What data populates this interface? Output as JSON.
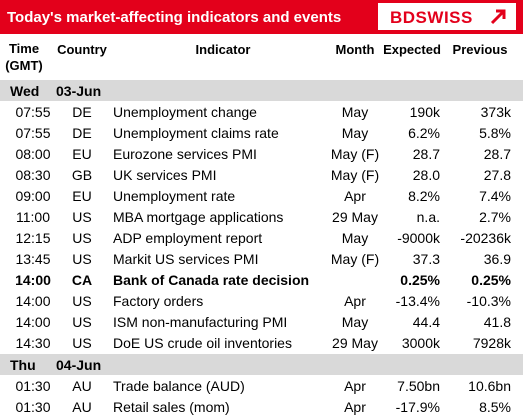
{
  "header": {
    "title": "Today's market-affecting indicators and events",
    "logo": "BDSWISS"
  },
  "table": {
    "columns": [
      "Time (GMT)",
      "Country",
      "Indicator",
      "Month",
      "Expected",
      "Previous"
    ],
    "sections": [
      {
        "day": "Wed",
        "date": "03-Jun",
        "rows": [
          [
            "07:55",
            "DE",
            "Unemployment change",
            "May",
            "190k",
            "373k"
          ],
          [
            "07:55",
            "DE",
            "Unemployment claims rate",
            "May",
            "6.2%",
            "5.8%"
          ],
          [
            "08:00",
            "EU",
            "Eurozone services PMI",
            "May (F)",
            "28.7",
            "28.7"
          ],
          [
            "08:30",
            "GB",
            "UK services PMI",
            "May (F)",
            "28.0",
            "27.8"
          ],
          [
            "09:00",
            "EU",
            "Unemployment rate",
            "Apr",
            "8.2%",
            "7.4%"
          ],
          [
            "11:00",
            "US",
            "MBA mortgage applications",
            "29 May",
            "n.a.",
            "2.7%"
          ],
          [
            "12:15",
            "US",
            "ADP employment report",
            "May",
            "-9000k",
            "-20236k"
          ],
          [
            "13:45",
            "US",
            "Markit US services PMI",
            "May (F)",
            "37.3",
            "36.9"
          ],
          [
            "14:00",
            "CA",
            "Bank of Canada rate decision",
            "",
            "0.25%",
            "0.25%"
          ],
          [
            "14:00",
            "US",
            "Factory orders",
            "Apr",
            "-13.4%",
            "-10.3%"
          ],
          [
            "14:00",
            "US",
            "ISM non-manufacturing PMI",
            "May",
            "44.4",
            "41.8"
          ],
          [
            "14:30",
            "US",
            "DoE US crude oil inventories",
            "29 May",
            "3000k",
            "7928k"
          ]
        ],
        "bold_rows": [
          8
        ]
      },
      {
        "day": "Thu",
        "date": "04-Jun",
        "rows": [
          [
            "01:30",
            "AU",
            "Trade balance (AUD)",
            "Apr",
            "7.50bn",
            "10.6bn"
          ],
          [
            "01:30",
            "AU",
            "Retail sales (mom)",
            "Apr",
            "-17.9%",
            "8.5%"
          ]
        ],
        "bold_rows": []
      }
    ]
  }
}
